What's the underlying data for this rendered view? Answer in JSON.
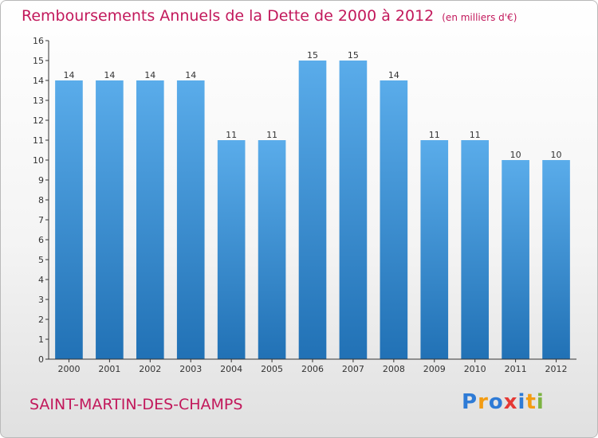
{
  "title": "Remboursements Annuels de la Dette de 2000 à 2012",
  "unit_label": "(en milliers d'€)",
  "location": "SAINT-MARTIN-DES-CHAMPS",
  "logo": {
    "text": "Proxiti",
    "letter_colors": [
      "#2e7bd6",
      "#f39c12",
      "#2e7bd6",
      "#e53935",
      "#2e7bd6",
      "#f39c12",
      "#7cb342"
    ]
  },
  "colors": {
    "title": "#c2185b",
    "bar_top": "#5aacea",
    "bar_bottom": "#2171b5",
    "axis": "#333333",
    "grid": "#e2e2e2"
  },
  "chart_data": {
    "type": "bar",
    "title": "Remboursements Annuels de la Dette de 2000 à 2012",
    "xlabel": "",
    "ylabel": "",
    "ylim": [
      0,
      16
    ],
    "yticks": [
      0,
      1,
      2,
      3,
      4,
      5,
      6,
      7,
      8,
      9,
      10,
      11,
      12,
      13,
      14,
      15,
      16
    ],
    "categories": [
      "2000",
      "2001",
      "2002",
      "2003",
      "2004",
      "2005",
      "2006",
      "2007",
      "2008",
      "2009",
      "2010",
      "2011",
      "2012"
    ],
    "values": [
      14,
      14,
      14,
      14,
      11,
      11,
      15,
      15,
      14,
      11,
      11,
      10,
      10
    ],
    "data_labels": true,
    "grid": false,
    "legend": "none"
  }
}
